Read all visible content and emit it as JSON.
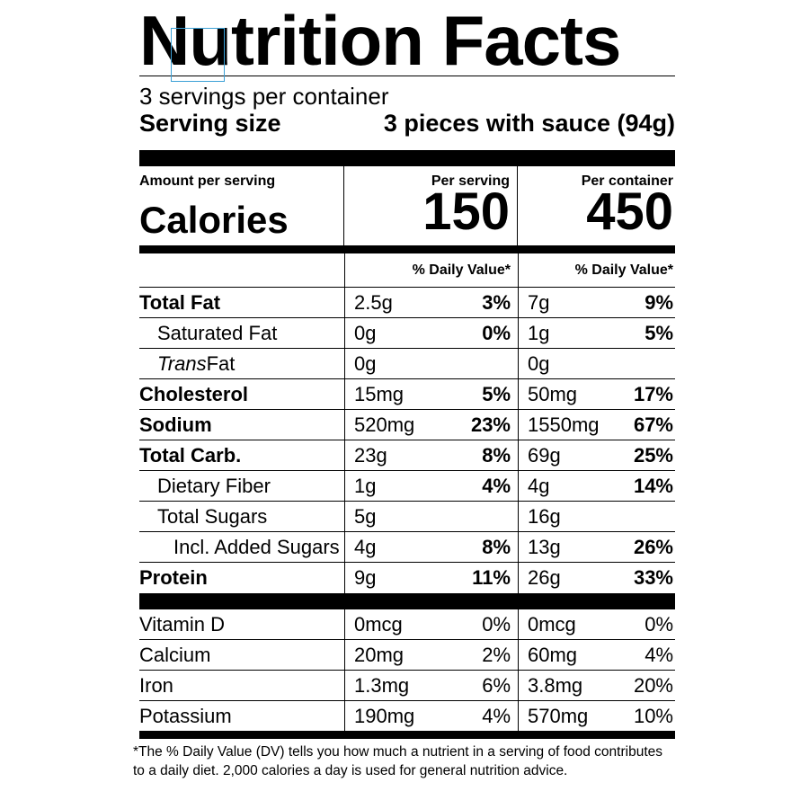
{
  "label": {
    "title": "Nutrition Facts",
    "servings_per_container": "3 servings per container",
    "serving_size_label": "Serving size",
    "serving_size_value": "3 pieces with sauce (94g)",
    "amount_per_serving": "Amount per serving",
    "calories_label": "Calories",
    "per_serving_label": "Per serving",
    "per_container_label": "Per container",
    "calories_per_serving": "150",
    "calories_per_container": "450",
    "daily_value_header": "% Daily Value*"
  },
  "nutrients": [
    {
      "name": "Total Fat",
      "serving": "2.5g",
      "serving_dv": "3%",
      "container": "7g",
      "container_dv": "9%"
    },
    {
      "name": "Saturated Fat",
      "serving": "0g",
      "serving_dv": "0%",
      "container": "1g",
      "container_dv": "5%"
    },
    {
      "name_italic": "Trans",
      "name_rest": " Fat",
      "serving": "0g",
      "serving_dv": "",
      "container": "0g",
      "container_dv": ""
    },
    {
      "name": "Cholesterol",
      "serving": "15mg",
      "serving_dv": "5%",
      "container": "50mg",
      "container_dv": "17%"
    },
    {
      "name": "Sodium",
      "serving": "520mg",
      "serving_dv": "23%",
      "container": "1550mg",
      "container_dv": "67%"
    },
    {
      "name": "Total Carb.",
      "serving": "23g",
      "serving_dv": "8%",
      "container": "69g",
      "container_dv": "25%"
    },
    {
      "name": "Dietary Fiber",
      "serving": "1g",
      "serving_dv": "4%",
      "container": "4g",
      "container_dv": "14%"
    },
    {
      "name": "Total Sugars",
      "serving": "5g",
      "serving_dv": "",
      "container": "16g",
      "container_dv": ""
    },
    {
      "name": "Incl. Added Sugars",
      "serving": "4g",
      "serving_dv": "8%",
      "container": "13g",
      "container_dv": "26%"
    },
    {
      "name": "Protein",
      "serving": "9g",
      "serving_dv": "11%",
      "container": "26g",
      "container_dv": "33%"
    }
  ],
  "vitamins": [
    {
      "name": "Vitamin D",
      "serving": "0mcg",
      "serving_dv": "0%",
      "container": "0mcg",
      "container_dv": "0%"
    },
    {
      "name": "Calcium",
      "serving": "20mg",
      "serving_dv": "2%",
      "container": "60mg",
      "container_dv": "4%"
    },
    {
      "name": "Iron",
      "serving": "1.3mg",
      "serving_dv": "6%",
      "container": "3.8mg",
      "container_dv": "20%"
    },
    {
      "name": "Potassium",
      "serving": "190mg",
      "serving_dv": "4%",
      "container": "570mg",
      "container_dv": "10%"
    }
  ],
  "footnote": "*The % Daily Value (DV) tells you how much a nutrient in a serving of food contributes to a daily diet. 2,000 calories a day is used for general nutrition advice.",
  "colors": {
    "text": "#000000",
    "background": "#ffffff",
    "focus_box": "#3ba0d6"
  }
}
